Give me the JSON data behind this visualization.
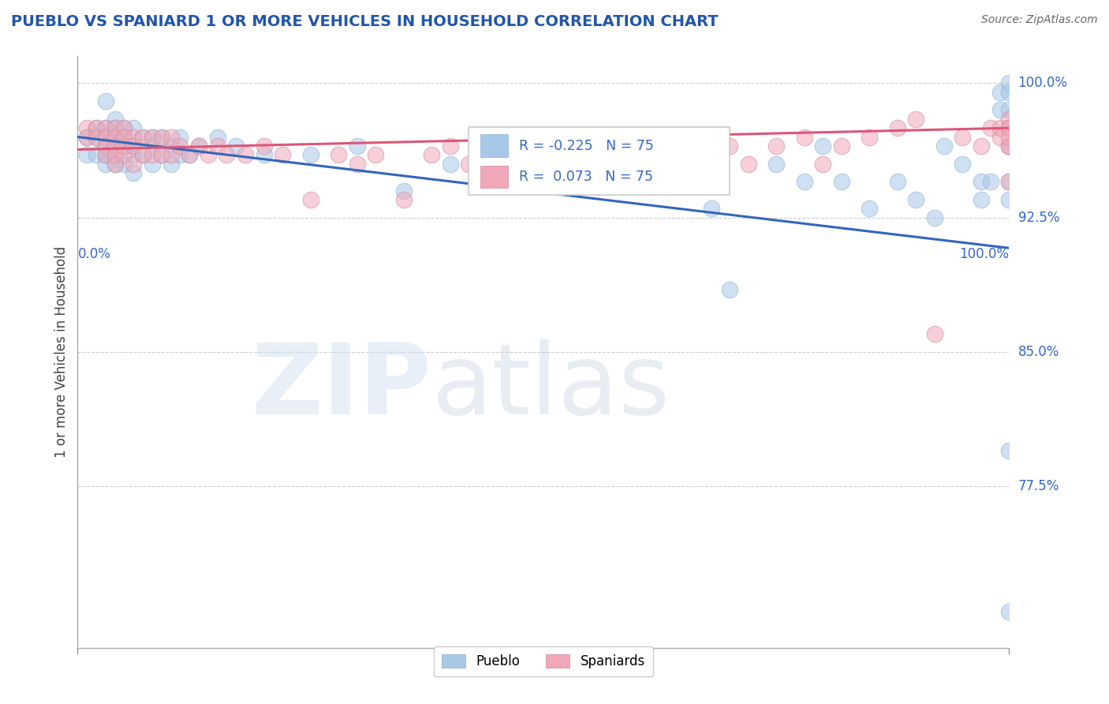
{
  "title": "PUEBLO VS SPANIARD 1 OR MORE VEHICLES IN HOUSEHOLD CORRELATION CHART",
  "source": "Source: ZipAtlas.com",
  "ylabel": "1 or more Vehicles in Household",
  "xlim": [
    0.0,
    1.0
  ],
  "ylim": [
    0.685,
    1.015
  ],
  "yticks": [
    0.775,
    0.85,
    0.925,
    1.0
  ],
  "ytick_labels": [
    "77.5%",
    "85.0%",
    "92.5%",
    "100.0%"
  ],
  "pueblo_color": "#a8c8e8",
  "spaniard_color": "#f0a8b8",
  "pueblo_line_color": "#3366bb",
  "spaniard_line_color": "#dd5577",
  "pueblo_R": -0.225,
  "pueblo_N": 75,
  "spaniard_R": 0.073,
  "spaniard_N": 75,
  "pueblo_x": [
    0.01,
    0.01,
    0.02,
    0.02,
    0.02,
    0.03,
    0.03,
    0.03,
    0.03,
    0.03,
    0.03,
    0.04,
    0.04,
    0.04,
    0.04,
    0.04,
    0.04,
    0.05,
    0.05,
    0.05,
    0.05,
    0.06,
    0.06,
    0.06,
    0.06,
    0.07,
    0.07,
    0.08,
    0.08,
    0.08,
    0.09,
    0.09,
    0.1,
    0.1,
    0.11,
    0.11,
    0.12,
    0.13,
    0.15,
    0.17,
    0.2,
    0.25,
    0.3,
    0.35,
    0.4,
    0.45,
    0.5,
    0.55,
    0.6,
    0.65,
    0.68,
    0.7,
    0.75,
    0.78,
    0.8,
    0.82,
    0.85,
    0.88,
    0.9,
    0.92,
    0.93,
    0.95,
    0.97,
    0.97,
    0.98,
    0.99,
    0.99,
    1.0,
    1.0,
    1.0,
    1.0,
    1.0,
    1.0,
    1.0,
    1.0
  ],
  "pueblo_y": [
    0.97,
    0.96,
    0.975,
    0.97,
    0.96,
    0.99,
    0.975,
    0.97,
    0.965,
    0.96,
    0.955,
    0.98,
    0.975,
    0.97,
    0.965,
    0.96,
    0.955,
    0.975,
    0.97,
    0.965,
    0.955,
    0.975,
    0.965,
    0.96,
    0.95,
    0.97,
    0.96,
    0.97,
    0.965,
    0.955,
    0.97,
    0.96,
    0.965,
    0.955,
    0.97,
    0.96,
    0.96,
    0.965,
    0.97,
    0.965,
    0.96,
    0.96,
    0.965,
    0.94,
    0.955,
    0.965,
    0.945,
    0.97,
    0.96,
    0.955,
    0.93,
    0.885,
    0.955,
    0.945,
    0.965,
    0.945,
    0.93,
    0.945,
    0.935,
    0.925,
    0.965,
    0.955,
    0.945,
    0.935,
    0.945,
    0.995,
    0.985,
    1.0,
    0.995,
    0.985,
    0.965,
    0.945,
    0.935,
    0.795,
    0.705
  ],
  "spaniard_x": [
    0.01,
    0.01,
    0.02,
    0.02,
    0.03,
    0.03,
    0.03,
    0.03,
    0.04,
    0.04,
    0.04,
    0.04,
    0.04,
    0.05,
    0.05,
    0.05,
    0.05,
    0.06,
    0.06,
    0.06,
    0.07,
    0.07,
    0.08,
    0.08,
    0.09,
    0.09,
    0.1,
    0.1,
    0.11,
    0.12,
    0.13,
    0.14,
    0.15,
    0.16,
    0.18,
    0.2,
    0.22,
    0.25,
    0.28,
    0.3,
    0.32,
    0.35,
    0.38,
    0.4,
    0.42,
    0.45,
    0.48,
    0.52,
    0.55,
    0.58,
    0.62,
    0.65,
    0.68,
    0.7,
    0.72,
    0.75,
    0.78,
    0.8,
    0.82,
    0.85,
    0.88,
    0.9,
    0.92,
    0.95,
    0.97,
    0.98,
    0.99,
    0.99,
    1.0,
    1.0,
    1.0,
    1.0,
    1.0,
    1.0,
    1.0
  ],
  "spaniard_y": [
    0.975,
    0.97,
    0.975,
    0.97,
    0.975,
    0.97,
    0.965,
    0.96,
    0.975,
    0.97,
    0.965,
    0.96,
    0.955,
    0.975,
    0.97,
    0.965,
    0.96,
    0.97,
    0.965,
    0.955,
    0.97,
    0.96,
    0.97,
    0.96,
    0.97,
    0.96,
    0.97,
    0.96,
    0.965,
    0.96,
    0.965,
    0.96,
    0.965,
    0.96,
    0.96,
    0.965,
    0.96,
    0.935,
    0.96,
    0.955,
    0.96,
    0.935,
    0.96,
    0.965,
    0.955,
    0.97,
    0.96,
    0.965,
    0.96,
    0.97,
    0.97,
    0.965,
    0.96,
    0.965,
    0.955,
    0.965,
    0.97,
    0.955,
    0.965,
    0.97,
    0.975,
    0.98,
    0.86,
    0.97,
    0.965,
    0.975,
    0.97,
    0.975,
    0.98,
    0.965,
    0.945,
    0.975,
    0.965,
    0.975,
    0.97
  ]
}
